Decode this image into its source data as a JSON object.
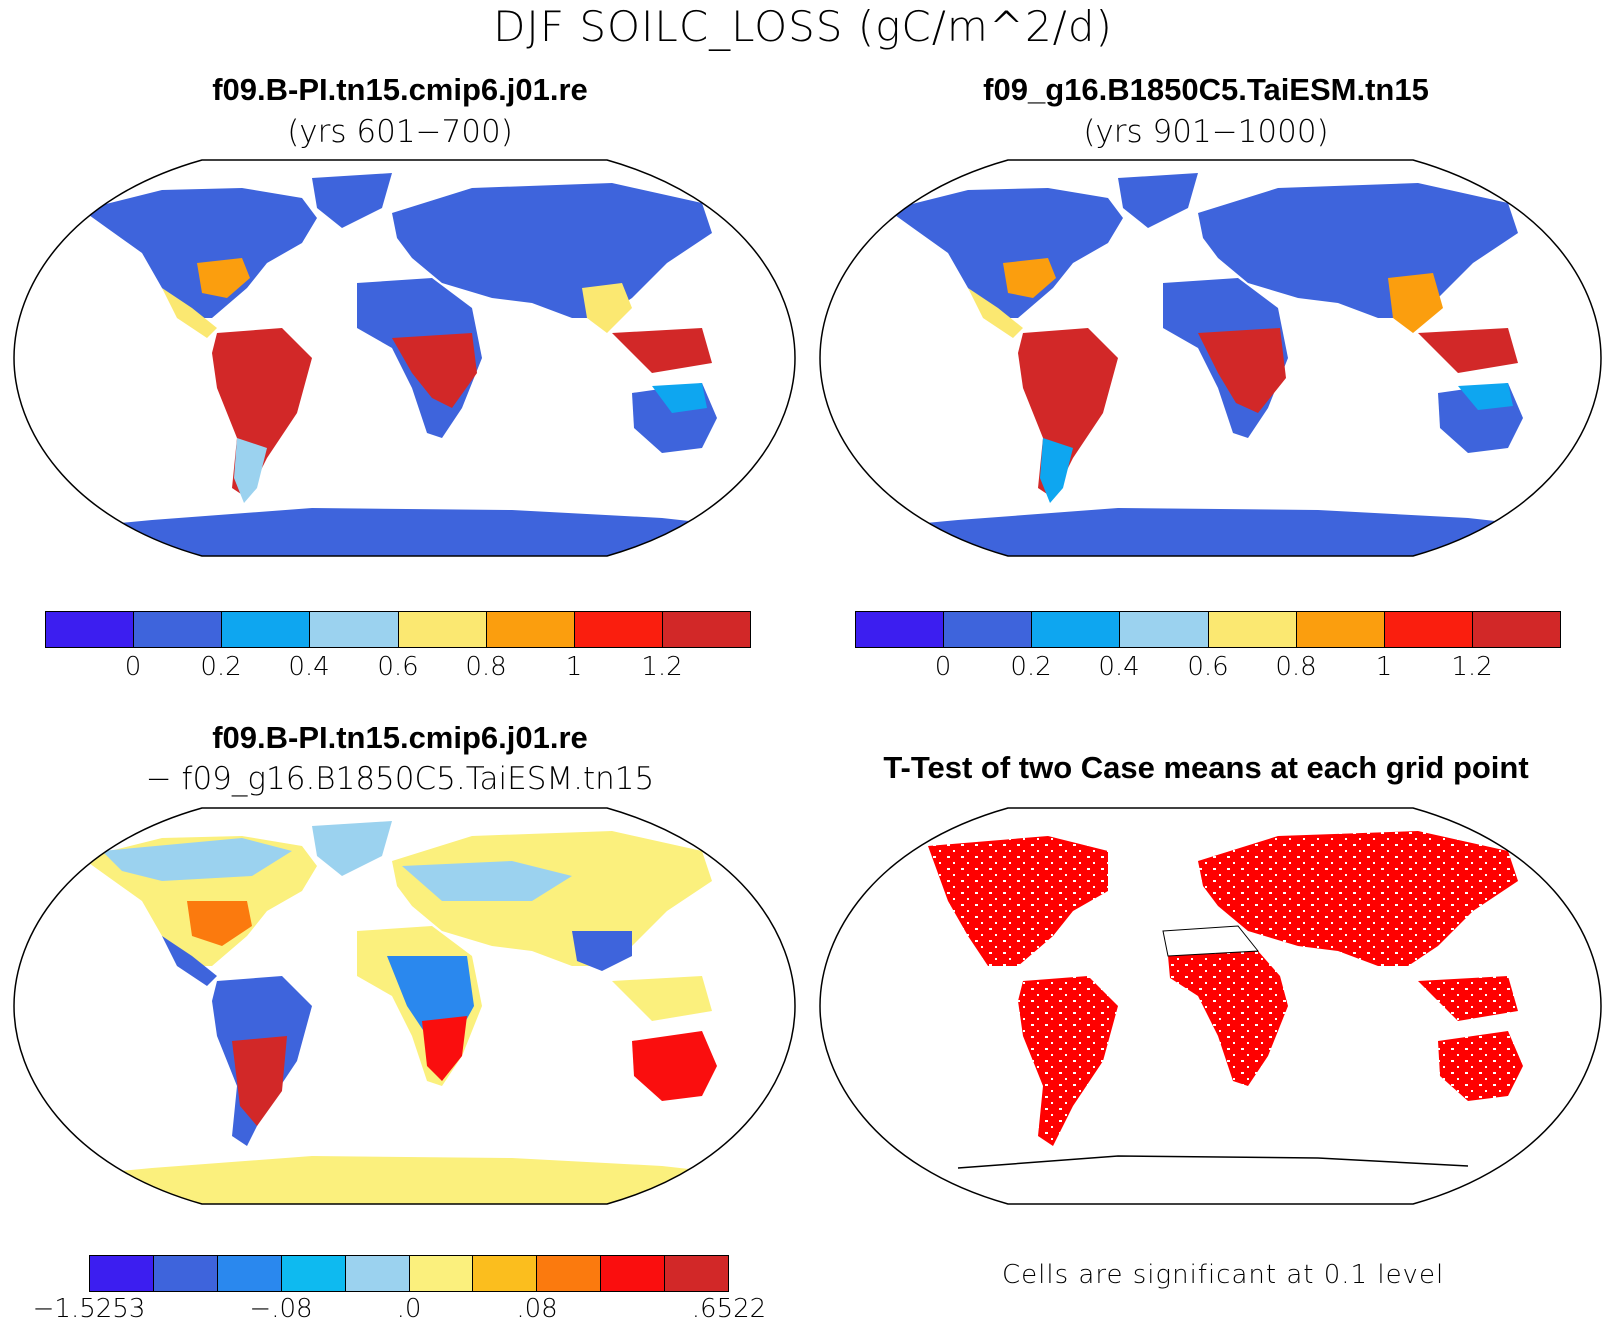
{
  "title": "DJF SOILC_LOSS (gC/m^2/d)",
  "panels": [
    {
      "title": "f09.B-PI.tn15.cmip6.j01.re",
      "subtitle": "(yrs 601−700)"
    },
    {
      "title": "f09_g16.B1850C5.TaiESM.tn15",
      "subtitle": "(yrs 901−1000)"
    },
    {
      "title": "f09.B-PI.tn15.cmip6.j01.re",
      "subtitle": "− f09_g16.B1850C5.TaiESM.tn15"
    },
    {
      "title": "T-Test of two Case means at each grid point",
      "subtitle": ""
    }
  ],
  "colorbar_abs": {
    "colors": [
      "#3c1ef0",
      "#3e64dc",
      "#0ea6f0",
      "#9bd2ef",
      "#fbe871",
      "#fb9e0e",
      "#fa1e0e",
      "#d22828"
    ],
    "tick_labels": [
      "0",
      "0.2",
      "0.4",
      "0.6",
      "0.8",
      "1",
      "1.2"
    ]
  },
  "colorbar_diff": {
    "colors": [
      "#3c1ef0",
      "#3e64dc",
      "#2a88ee",
      "#0ebaf0",
      "#9bd2ef",
      "#fbf07d",
      "#fbbe1e",
      "#fb7a0e",
      "#fa0e0e",
      "#d22828"
    ],
    "tick_labels": [
      "−1.5253",
      "−.08",
      ".0",
      ".08",
      ".6522"
    ]
  },
  "significance_note": "Cells are significant at 0.1 level",
  "significance_color": "#ff0000"
}
